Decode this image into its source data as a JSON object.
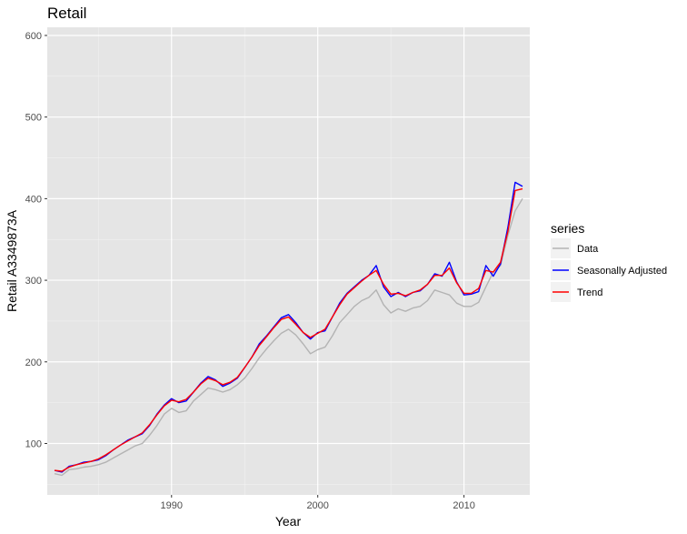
{
  "chart_data": {
    "type": "line",
    "title": "Retail",
    "xlabel": "Year",
    "ylabel": "Retail A3349873A",
    "xlim": [
      1981.5,
      2014.5
    ],
    "ylim": [
      37,
      610
    ],
    "x_ticks": [
      1990,
      2000,
      2010
    ],
    "y_ticks": [
      100,
      200,
      300,
      400,
      500,
      600
    ],
    "grid": true,
    "legend": {
      "title": "series",
      "placement": "right"
    },
    "series": [
      {
        "name": "Data",
        "color": "#b3b3b3",
        "x": [
          1982.0,
          1982.5,
          1983.0,
          1983.5,
          1984.0,
          1984.5,
          1985.0,
          1985.5,
          1986.0,
          1986.5,
          1987.0,
          1987.5,
          1988.0,
          1988.5,
          1989.0,
          1989.5,
          1990.0,
          1990.5,
          1991.0,
          1991.5,
          1992.0,
          1992.5,
          1993.0,
          1993.5,
          1994.0,
          1994.5,
          1995.0,
          1995.5,
          1996.0,
          1996.5,
          1997.0,
          1997.5,
          1998.0,
          1998.5,
          1999.0,
          1999.5,
          2000.0,
          2000.5,
          2001.0,
          2001.5,
          2002.0,
          2002.5,
          2003.0,
          2003.5,
          2004.0,
          2004.5,
          2005.0,
          2005.5,
          2006.0,
          2006.5,
          2007.0,
          2007.5,
          2008.0,
          2008.5,
          2009.0,
          2009.5,
          2010.0,
          2010.5,
          2011.0,
          2011.5,
          2012.0,
          2012.5,
          2013.0,
          2013.5,
          2014.0
        ],
        "y": [
          63,
          61,
          68,
          69,
          71,
          72,
          74,
          77,
          82,
          87,
          92,
          97,
          100,
          110,
          122,
          136,
          143,
          138,
          140,
          152,
          160,
          168,
          166,
          163,
          166,
          172,
          180,
          192,
          205,
          216,
          226,
          235,
          240,
          233,
          222,
          210,
          215,
          218,
          232,
          248,
          258,
          268,
          275,
          279,
          288,
          270,
          260,
          265,
          262,
          266,
          268,
          275,
          288,
          285,
          282,
          272,
          268,
          268,
          273,
          292,
          310,
          318,
          355,
          385,
          400
        ]
      },
      {
        "name": "Seasonally Adjusted",
        "color": "#0000ff",
        "x": [
          1982.0,
          1982.5,
          1983.0,
          1983.5,
          1984.0,
          1984.5,
          1985.0,
          1985.5,
          1986.0,
          1986.5,
          1987.0,
          1987.5,
          1988.0,
          1988.5,
          1989.0,
          1989.5,
          1990.0,
          1990.5,
          1991.0,
          1991.5,
          1992.0,
          1992.5,
          1993.0,
          1993.5,
          1994.0,
          1994.5,
          1995.0,
          1995.5,
          1996.0,
          1996.5,
          1997.0,
          1997.5,
          1998.0,
          1998.5,
          1999.0,
          1999.5,
          2000.0,
          2000.5,
          2001.0,
          2001.5,
          2002.0,
          2002.5,
          2003.0,
          2003.5,
          2004.0,
          2004.5,
          2005.0,
          2005.5,
          2006.0,
          2006.5,
          2007.0,
          2007.5,
          2008.0,
          2008.5,
          2009.0,
          2009.5,
          2010.0,
          2010.5,
          2011.0,
          2011.5,
          2012.0,
          2012.5,
          2013.0,
          2013.5,
          2014.0
        ],
        "y": [
          67,
          65,
          72,
          74,
          77,
          78,
          80,
          85,
          92,
          98,
          104,
          108,
          112,
          122,
          136,
          147,
          155,
          150,
          152,
          163,
          174,
          182,
          178,
          170,
          174,
          180,
          193,
          206,
          222,
          232,
          243,
          254,
          258,
          248,
          236,
          228,
          236,
          238,
          255,
          272,
          284,
          292,
          300,
          306,
          318,
          292,
          280,
          285,
          280,
          285,
          287,
          295,
          308,
          305,
          322,
          298,
          282,
          283,
          286,
          318,
          305,
          320,
          365,
          420,
          415
        ]
      },
      {
        "name": "Trend",
        "color": "#ff0000",
        "x": [
          1982.0,
          1982.5,
          1983.0,
          1983.5,
          1984.0,
          1984.5,
          1985.0,
          1985.5,
          1986.0,
          1986.5,
          1987.0,
          1987.5,
          1988.0,
          1988.5,
          1989.0,
          1989.5,
          1990.0,
          1990.5,
          1991.0,
          1991.5,
          1992.0,
          1992.5,
          1993.0,
          1993.5,
          1994.0,
          1994.5,
          1995.0,
          1995.5,
          1996.0,
          1996.5,
          1997.0,
          1997.5,
          1998.0,
          1998.5,
          1999.0,
          1999.5,
          2000.0,
          2000.5,
          2001.0,
          2001.5,
          2002.0,
          2002.5,
          2003.0,
          2003.5,
          2004.0,
          2004.5,
          2005.0,
          2005.5,
          2006.0,
          2006.5,
          2007.0,
          2007.5,
          2008.0,
          2008.5,
          2009.0,
          2009.5,
          2010.0,
          2010.5,
          2011.0,
          2011.5,
          2012.0,
          2012.5,
          2013.0,
          2013.5,
          2014.0
        ],
        "y": [
          67,
          66,
          71,
          74,
          76,
          78,
          81,
          86,
          92,
          98,
          103,
          108,
          113,
          123,
          135,
          146,
          153,
          151,
          154,
          163,
          173,
          180,
          177,
          172,
          175,
          181,
          193,
          206,
          220,
          231,
          242,
          252,
          255,
          246,
          236,
          230,
          235,
          240,
          255,
          270,
          283,
          291,
          299,
          306,
          312,
          295,
          283,
          284,
          281,
          285,
          288,
          295,
          306,
          306,
          315,
          297,
          284,
          284,
          290,
          312,
          310,
          322,
          360,
          410,
          412
        ]
      }
    ]
  }
}
